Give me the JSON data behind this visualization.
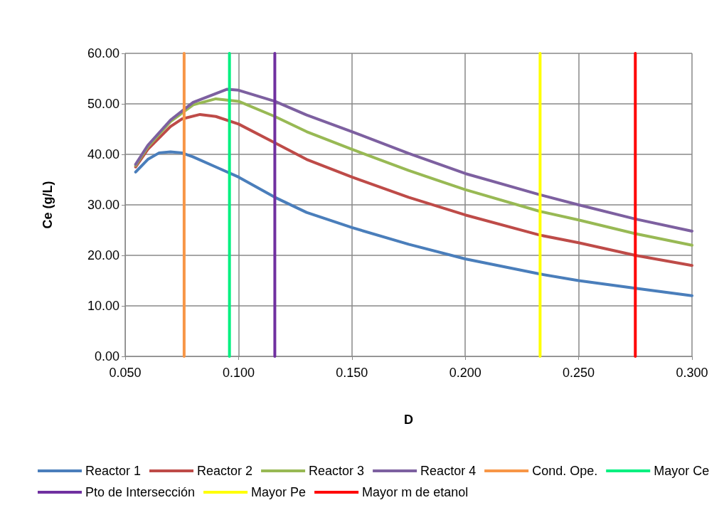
{
  "chart_data": {
    "type": "line",
    "xlabel": "D",
    "ylabel": "Ce (g/L)",
    "xlim": [
      0.05,
      0.3
    ],
    "ylim": [
      0,
      60
    ],
    "xticks": [
      {
        "value": 0.05,
        "label": "0.050"
      },
      {
        "value": 0.1,
        "label": "0.100"
      },
      {
        "value": 0.15,
        "label": "0.150"
      },
      {
        "value": 0.2,
        "label": "0.200"
      },
      {
        "value": 0.25,
        "label": "0.250"
      },
      {
        "value": 0.3,
        "label": "0.300"
      }
    ],
    "yticks": [
      {
        "value": 0,
        "label": "0.00"
      },
      {
        "value": 10,
        "label": "10.00"
      },
      {
        "value": 20,
        "label": "20.00"
      },
      {
        "value": 30,
        "label": "30.00"
      },
      {
        "value": 40,
        "label": "40.00"
      },
      {
        "value": 50,
        "label": "50.00"
      },
      {
        "value": 60,
        "label": "60.00"
      }
    ],
    "grid": true,
    "legend": "bottom",
    "marker": "none",
    "line_style": "solid",
    "series": [
      {
        "name": "Reactor 1",
        "color": "#4a7ebb",
        "x": [
          0.0546,
          0.06,
          0.065,
          0.07,
          0.075,
          0.08,
          0.09,
          0.1,
          0.116,
          0.13,
          0.15,
          0.175,
          0.2,
          0.233,
          0.25,
          0.275,
          0.3
        ],
        "values": [
          36.5,
          39,
          40.3,
          40.5,
          40.3,
          39.5,
          37.5,
          35.5,
          31.5,
          28.5,
          25.5,
          22.2,
          19.3,
          16.3,
          15,
          13.5,
          12
        ]
      },
      {
        "name": "Reactor 2",
        "color": "#be4b48",
        "x": [
          0.0546,
          0.06,
          0.07,
          0.075,
          0.083,
          0.09,
          0.1,
          0.116,
          0.13,
          0.15,
          0.175,
          0.2,
          0.233,
          0.25,
          0.275,
          0.3
        ],
        "values": [
          37.5,
          41,
          45.5,
          47,
          47.9,
          47.5,
          46,
          42.3,
          39,
          35.5,
          31.5,
          28,
          24,
          22.5,
          20,
          18
        ]
      },
      {
        "name": "Reactor 3",
        "color": "#98b954",
        "x": [
          0.0546,
          0.06,
          0.07,
          0.08,
          0.09,
          0.1,
          0.116,
          0.13,
          0.15,
          0.175,
          0.2,
          0.233,
          0.25,
          0.275,
          0.3
        ],
        "values": [
          37.8,
          41.5,
          46.5,
          49.8,
          51,
          50.5,
          47.5,
          44.5,
          41,
          36.8,
          33,
          28.7,
          27,
          24.3,
          22
        ]
      },
      {
        "name": "Reactor 4",
        "color": "#7d60a0",
        "x": [
          0.0546,
          0.06,
          0.07,
          0.08,
          0.095,
          0.1,
          0.116,
          0.13,
          0.15,
          0.175,
          0.2,
          0.233,
          0.25,
          0.275,
          0.3
        ],
        "values": [
          38,
          41.8,
          46.8,
          50.3,
          52.9,
          52.7,
          50.5,
          47.8,
          44.5,
          40.2,
          36.2,
          32,
          30,
          27.2,
          24.8
        ]
      },
      {
        "name": "Cond. Ope.",
        "color": "#f79646",
        "x": [
          0.076,
          0.076
        ],
        "values": [
          0,
          60
        ]
      },
      {
        "name": "Mayor Ce",
        "color": "#00f080",
        "x": [
          0.096,
          0.096
        ],
        "values": [
          0,
          60
        ]
      },
      {
        "name": "Pto de Intersección",
        "color": "#7030a0",
        "x": [
          0.116,
          0.116
        ],
        "values": [
          0,
          60
        ]
      },
      {
        "name": "Mayor Pe",
        "color": "#ffff00",
        "x": [
          0.233,
          0.233
        ],
        "values": [
          0,
          60
        ]
      },
      {
        "name": "Mayor m de etanol",
        "color": "#ff0000",
        "x": [
          0.275,
          0.275
        ],
        "values": [
          0,
          60
        ]
      }
    ]
  }
}
